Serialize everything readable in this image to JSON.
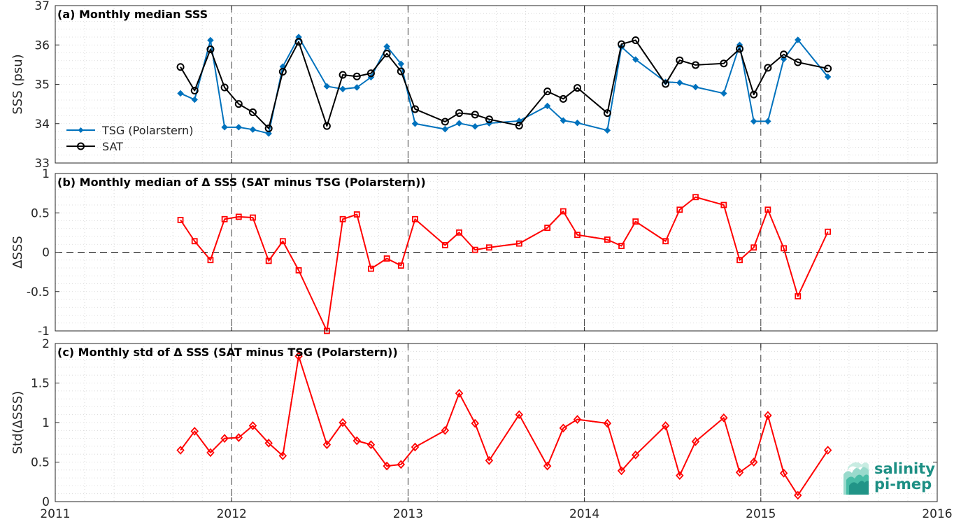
{
  "chart_data": [
    {
      "type": "line",
      "title": "(a) Monthly median SSS",
      "ylabel": "SSS (psu)",
      "xlim": [
        2011,
        2016
      ],
      "ylim": [
        33,
        37
      ],
      "yticks": [
        33,
        34,
        35,
        36,
        37
      ],
      "grid": "minor dotted",
      "legend_position": "bottom-left",
      "series": [
        {
          "name": "TSG (Polarstern)",
          "color": "#0072BD",
          "marker": "diamond-filled",
          "x": [
            2011.71,
            2011.79,
            2011.88,
            2011.96,
            2012.04,
            2012.12,
            2012.21,
            2012.29,
            2012.38,
            2012.54,
            2012.63,
            2012.71,
            2012.79,
            2012.88,
            2012.96,
            2013.04,
            2013.21,
            2013.29,
            2013.38,
            2013.46,
            2013.63,
            2013.79,
            2013.88,
            2013.96,
            2014.13,
            2014.21,
            2014.29,
            2014.46,
            2014.54,
            2014.63,
            2014.79,
            2014.88,
            2014.96,
            2015.04,
            2015.13,
            2015.21,
            2015.38
          ],
          "y": [
            34.77,
            34.61,
            36.12,
            33.91,
            33.91,
            33.85,
            33.75,
            35.45,
            36.2,
            34.95,
            34.88,
            34.92,
            35.18,
            35.96,
            35.52,
            34.0,
            33.86,
            34.01,
            33.93,
            34.01,
            34.07,
            34.45,
            34.08,
            34.02,
            33.83,
            35.95,
            35.63,
            35.06,
            35.04,
            34.93,
            34.77,
            36.0,
            34.06,
            34.06,
            35.64,
            36.13,
            35.19
          ]
        },
        {
          "name": "SAT",
          "color": "#000000",
          "marker": "circle-open",
          "x": [
            2011.71,
            2011.79,
            2011.88,
            2011.96,
            2012.04,
            2012.12,
            2012.21,
            2012.29,
            2012.38,
            2012.54,
            2012.63,
            2012.71,
            2012.79,
            2012.88,
            2012.96,
            2013.04,
            2013.21,
            2013.29,
            2013.38,
            2013.46,
            2013.63,
            2013.79,
            2013.88,
            2013.96,
            2014.13,
            2014.21,
            2014.29,
            2014.46,
            2014.54,
            2014.63,
            2014.79,
            2014.88,
            2014.96,
            2015.04,
            2015.13,
            2015.21,
            2015.38
          ],
          "y": [
            35.44,
            34.84,
            35.89,
            34.92,
            34.5,
            34.29,
            33.88,
            35.32,
            36.08,
            33.94,
            35.24,
            35.2,
            35.28,
            35.78,
            35.33,
            34.37,
            34.05,
            34.27,
            34.23,
            34.11,
            33.95,
            34.82,
            34.63,
            34.91,
            34.27,
            36.02,
            36.12,
            35.01,
            35.61,
            35.49,
            35.53,
            35.9,
            34.74,
            35.42,
            35.76,
            35.56,
            35.4
          ]
        }
      ]
    },
    {
      "type": "line",
      "title": "(b) Monthly median of Δ SSS (SAT minus TSG (Polarstern))",
      "ylabel": "ΔSSS",
      "xlim": [
        2011,
        2016
      ],
      "ylim": [
        -1,
        1
      ],
      "yticks": [
        -1,
        -0.5,
        0,
        0.5,
        1
      ],
      "ytick_labels": [
        "-1",
        "-0.5",
        "0",
        "0.5",
        "1"
      ],
      "grid": "minor dotted",
      "zero_line": "dashed",
      "series": [
        {
          "color": "#FF0000",
          "marker": "square-open",
          "x": [
            2011.71,
            2011.79,
            2011.88,
            2011.96,
            2012.04,
            2012.12,
            2012.21,
            2012.29,
            2012.38,
            2012.54,
            2012.63,
            2012.71,
            2012.79,
            2012.88,
            2012.96,
            2013.04,
            2013.21,
            2013.29,
            2013.38,
            2013.46,
            2013.63,
            2013.79,
            2013.88,
            2013.96,
            2014.13,
            2014.21,
            2014.29,
            2014.46,
            2014.54,
            2014.63,
            2014.79,
            2014.88,
            2014.96,
            2015.04,
            2015.13,
            2015.21,
            2015.38
          ],
          "y": [
            0.41,
            0.14,
            -0.1,
            0.42,
            0.45,
            0.44,
            -0.11,
            0.14,
            -0.23,
            -1.0,
            0.42,
            0.48,
            -0.21,
            -0.08,
            -0.17,
            0.42,
            0.09,
            0.25,
            0.03,
            0.06,
            0.11,
            0.31,
            0.52,
            0.22,
            0.16,
            0.08,
            0.39,
            0.14,
            0.54,
            0.7,
            0.6,
            -0.1,
            0.06,
            0.54,
            0.05,
            -0.56,
            0.26
          ]
        }
      ]
    },
    {
      "type": "line",
      "title": "(c) Monthly std of Δ SSS (SAT minus TSG (Polarstern))",
      "ylabel": "Std(ΔSSS)",
      "xlim": [
        2011,
        2016
      ],
      "ylim": [
        0,
        2
      ],
      "yticks": [
        0,
        0.5,
        1,
        1.5,
        2
      ],
      "ytick_labels": [
        "0",
        "0.5",
        "1",
        "1.5",
        "2"
      ],
      "xticks": [
        2011,
        2012,
        2013,
        2014,
        2015,
        2016
      ],
      "xtick_labels": [
        "2011",
        "2012",
        "2013",
        "2014",
        "2015",
        "2016"
      ],
      "grid": "minor dotted",
      "series": [
        {
          "color": "#FF0000",
          "marker": "diamond-open",
          "x": [
            2011.71,
            2011.79,
            2011.88,
            2011.96,
            2012.04,
            2012.12,
            2012.21,
            2012.29,
            2012.38,
            2012.54,
            2012.63,
            2012.71,
            2012.79,
            2012.88,
            2012.96,
            2013.04,
            2013.21,
            2013.29,
            2013.38,
            2013.46,
            2013.63,
            2013.79,
            2013.88,
            2013.96,
            2014.13,
            2014.21,
            2014.29,
            2014.46,
            2014.54,
            2014.63,
            2014.79,
            2014.88,
            2014.96,
            2015.04,
            2015.13,
            2015.21,
            2015.38
          ],
          "y": [
            0.65,
            0.89,
            0.62,
            0.8,
            0.81,
            0.96,
            0.74,
            0.58,
            1.84,
            0.72,
            1.0,
            0.77,
            0.72,
            0.45,
            0.47,
            0.69,
            0.9,
            1.37,
            0.99,
            0.52,
            1.1,
            0.45,
            0.93,
            1.04,
            0.99,
            0.39,
            0.59,
            0.96,
            0.33,
            0.76,
            1.06,
            0.37,
            0.5,
            1.09,
            0.36,
            0.08,
            0.65
          ]
        }
      ]
    }
  ],
  "logo": {
    "line1": "salinity",
    "line2": "pi-mep"
  }
}
